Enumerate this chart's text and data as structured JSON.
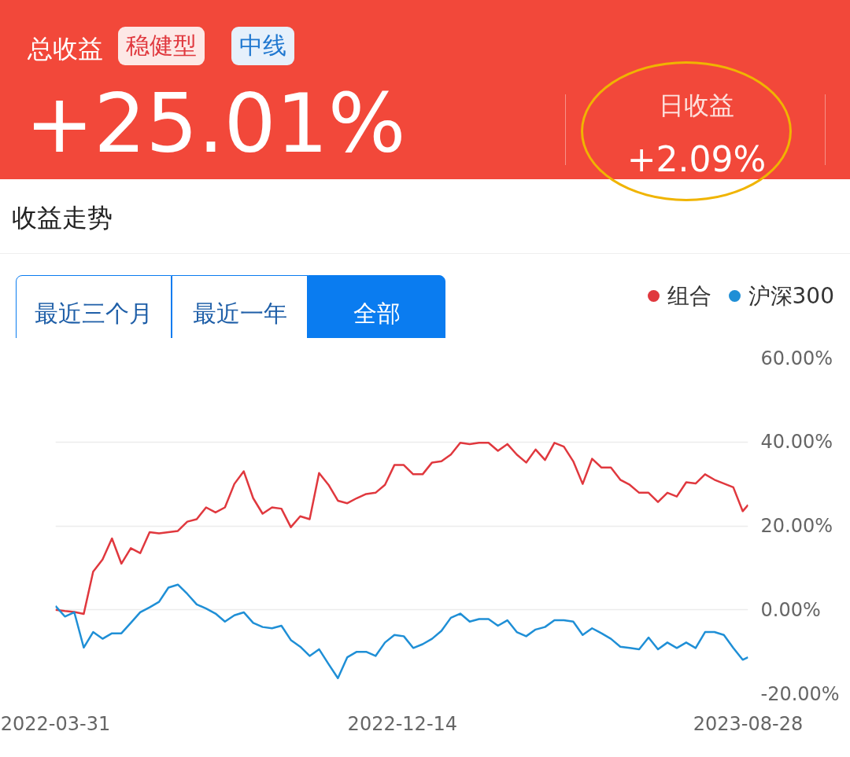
{
  "chart_data": {
    "type": "line",
    "title": "收益走势",
    "annotations": [
      "总收益",
      "稳健型",
      "中线",
      "+25.01%",
      "日收益",
      "+2.09%",
      "最近三个月",
      "最近一年",
      "全部"
    ],
    "x": [
      "2022-03-31",
      "2022-04-07",
      "2022-04-14",
      "2022-04-21",
      "2022-04-28",
      "2022-05-05",
      "2022-05-12",
      "2022-05-19",
      "2022-05-26",
      "2022-06-02",
      "2022-06-09",
      "2022-06-16",
      "2022-06-23",
      "2022-06-30",
      "2022-07-07",
      "2022-07-14",
      "2022-07-21",
      "2022-07-28",
      "2022-08-04",
      "2022-08-11",
      "2022-08-18",
      "2022-08-25",
      "2022-09-01",
      "2022-09-08",
      "2022-09-15",
      "2022-09-22",
      "2022-09-29",
      "2022-10-06",
      "2022-10-13",
      "2022-10-20",
      "2022-10-27",
      "2022-11-03",
      "2022-11-10",
      "2022-11-17",
      "2022-11-24",
      "2022-12-01",
      "2022-12-08",
      "2022-12-15",
      "2022-12-22",
      "2022-12-29",
      "2023-01-05",
      "2023-01-12",
      "2023-01-19",
      "2023-01-26",
      "2023-02-02",
      "2023-02-09",
      "2023-02-16",
      "2023-02-23",
      "2023-03-02",
      "2023-03-09",
      "2023-03-16",
      "2023-03-23",
      "2023-03-30",
      "2023-04-06",
      "2023-04-13",
      "2023-04-20",
      "2023-04-27",
      "2023-05-04",
      "2023-05-11",
      "2023-05-18",
      "2023-05-25",
      "2023-06-01",
      "2023-06-08",
      "2023-06-15",
      "2023-06-22",
      "2023-06-29",
      "2023-07-06",
      "2023-07-13",
      "2023-07-20",
      "2023-07-27",
      "2023-08-03",
      "2023-08-10",
      "2023-08-17",
      "2023-08-24",
      "2023-08-28"
    ],
    "series": [
      {
        "name": "组合",
        "color": "#e0383e",
        "values": [
          0.0,
          -0.3,
          -0.5,
          -1.0,
          9.1,
          12.0,
          17.0,
          11.0,
          14.7,
          13.5,
          18.5,
          18.2,
          18.5,
          18.8,
          21.0,
          21.6,
          24.4,
          23.2,
          24.4,
          30.0,
          33.0,
          26.6,
          22.9,
          24.4,
          24.1,
          19.7,
          22.3,
          21.6,
          32.6,
          29.8,
          26.0,
          25.4,
          26.6,
          27.6,
          27.9,
          29.8,
          34.5,
          34.5,
          32.3,
          32.3,
          35.1,
          35.4,
          37.0,
          39.8,
          39.5,
          39.8,
          39.8,
          37.9,
          39.5,
          37.0,
          35.1,
          38.2,
          35.7,
          39.8,
          38.9,
          35.4,
          30.0,
          36.0,
          33.9,
          33.9,
          31.0,
          29.8,
          27.9,
          27.9,
          25.7,
          27.9,
          27.0,
          30.4,
          30.1,
          32.3,
          31.0,
          30.1,
          29.2,
          23.5,
          25.0
        ]
      },
      {
        "name": "沪深300",
        "color": "#1f8fd6",
        "values": [
          0.9,
          -1.6,
          -0.6,
          -9.0,
          -5.3,
          -6.9,
          -5.6,
          -5.6,
          -3.1,
          -0.6,
          0.6,
          1.9,
          5.3,
          6.0,
          3.8,
          1.3,
          0.3,
          -0.9,
          -2.8,
          -1.3,
          -0.6,
          -3.1,
          -4.1,
          -4.4,
          -3.8,
          -7.2,
          -8.8,
          -11.0,
          -9.4,
          -12.9,
          -16.3,
          -11.3,
          -10.0,
          -10.0,
          -11.0,
          -7.8,
          -6.0,
          -6.3,
          -9.1,
          -8.2,
          -6.9,
          -5.0,
          -1.9,
          -0.9,
          -2.8,
          -2.2,
          -2.2,
          -3.8,
          -2.5,
          -5.3,
          -6.3,
          -4.7,
          -4.1,
          -2.5,
          -2.5,
          -2.8,
          -6.0,
          -4.4,
          -5.6,
          -6.9,
          -8.8,
          -9.1,
          -9.4,
          -6.6,
          -9.4,
          -7.8,
          -9.1,
          -7.8,
          -9.1,
          -5.3,
          -5.3,
          -6.0,
          -9.1,
          -11.9,
          -11.3
        ]
      }
    ],
    "xlim": [
      "2022-03-31",
      "2023-08-28"
    ],
    "xticks": [
      "2022-03-31",
      "2022-12-14",
      "2023-08-28"
    ],
    "ylim": [
      -20,
      60
    ],
    "yticks": [
      {
        "value": -20,
        "label": "-20.00%"
      },
      {
        "value": 0,
        "label": "0.00%"
      },
      {
        "value": 20,
        "label": "20.00%"
      },
      {
        "value": 40,
        "label": "40.00%"
      },
      {
        "value": 60,
        "label": "60.00%"
      }
    ],
    "grid": "y",
    "legend": "top right",
    "line_style": "solid"
  }
}
